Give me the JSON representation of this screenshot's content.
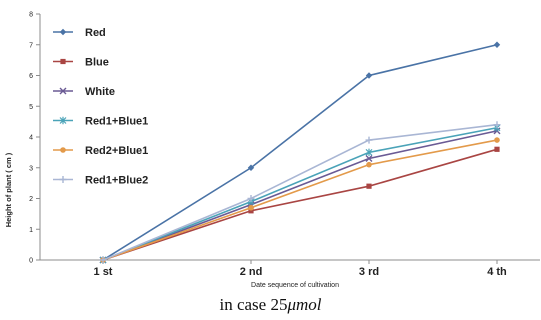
{
  "chart_data": {
    "type": "line",
    "title": "",
    "xlabel": "Date sequence of cultivation",
    "ylabel": "Height of plant ( cm )",
    "categories": [
      "1 st",
      "2 nd",
      "3 rd",
      "4 th"
    ],
    "ylim": [
      0,
      8
    ],
    "yticks": [
      "0",
      "1",
      "2",
      "3",
      "4",
      "5",
      "6",
      "7",
      "8"
    ],
    "grid": false,
    "legend_position": "top-left",
    "series": [
      {
        "name": "Red",
        "color": "#4a73a6",
        "marker": "diamond",
        "values": [
          0,
          3.0,
          6.0,
          7.0
        ]
      },
      {
        "name": "Blue",
        "color": "#a94543",
        "marker": "square",
        "values": [
          0,
          1.6,
          2.4,
          3.6
        ]
      },
      {
        "name": "White",
        "color": "#6a5a94",
        "marker": "x",
        "values": [
          0,
          1.8,
          3.3,
          4.2
        ]
      },
      {
        "name": "Red1+Blue1",
        "color": "#4aa3b8",
        "marker": "asterisk",
        "values": [
          0,
          1.9,
          3.5,
          4.3
        ]
      },
      {
        "name": "Red2+Blue1",
        "color": "#e39a4a",
        "marker": "circle",
        "values": [
          0,
          1.7,
          3.1,
          3.9
        ]
      },
      {
        "name": "Red1+Blue2",
        "color": "#a9b6d4",
        "marker": "plus",
        "values": [
          0,
          2.0,
          3.9,
          4.4
        ]
      }
    ]
  },
  "caption": {
    "prefix": "in case 25",
    "unit": "μmol"
  }
}
